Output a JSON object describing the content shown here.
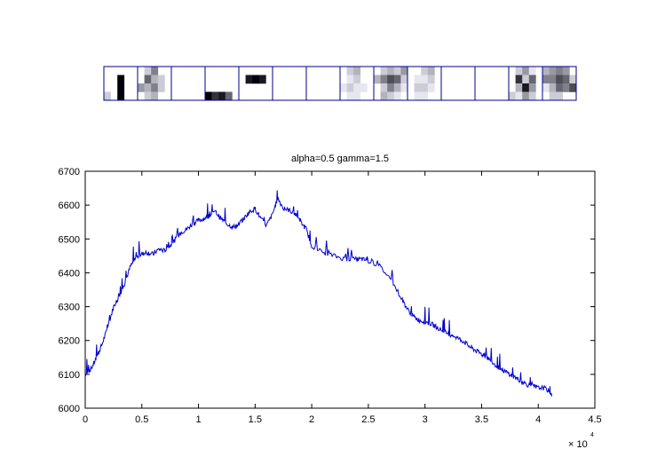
{
  "figure": {
    "strip": {
      "frame_color": "#00008b",
      "segments": 14,
      "rows": 4,
      "cols_per_segment": 5,
      "segment_intensity": [
        [
          [
            0,
            0,
            0,
            0,
            0
          ],
          [
            0,
            0,
            1,
            0,
            0
          ],
          [
            0,
            0,
            1,
            0,
            0
          ],
          [
            0.2,
            0,
            1,
            0,
            0
          ]
        ],
        [
          [
            0,
            0.2,
            0.5,
            0,
            0
          ],
          [
            0,
            0.6,
            0.3,
            0.2,
            0
          ],
          [
            0.4,
            0.3,
            0.5,
            0.2,
            0
          ],
          [
            0,
            0.2,
            0.3,
            0,
            0
          ]
        ],
        [
          [
            0,
            0,
            0,
            0,
            0
          ],
          [
            0,
            0,
            0,
            0,
            0
          ],
          [
            0,
            0,
            0,
            0,
            0
          ],
          [
            0,
            0,
            0,
            0,
            0
          ]
        ],
        [
          [
            0,
            0,
            0,
            0,
            0
          ],
          [
            0,
            0,
            0,
            0,
            0
          ],
          [
            0,
            0,
            0,
            0,
            0
          ],
          [
            1,
            0.8,
            0.9,
            0.6,
            0
          ]
        ],
        [
          [
            0,
            0,
            0,
            0,
            0
          ],
          [
            0,
            0.9,
            1,
            0.9,
            0
          ],
          [
            0,
            0,
            0,
            0,
            0
          ],
          [
            0,
            0,
            0,
            0,
            0
          ]
        ],
        [
          [
            0,
            0,
            0,
            0,
            0
          ],
          [
            0,
            0,
            0,
            0,
            0
          ],
          [
            0,
            0,
            0,
            0,
            0
          ],
          [
            0,
            0,
            0,
            0,
            0
          ]
        ],
        [
          [
            0,
            0,
            0,
            0,
            0
          ],
          [
            0,
            0,
            0,
            0,
            0
          ],
          [
            0,
            0,
            0,
            0,
            0
          ],
          [
            0,
            0,
            0,
            0,
            0
          ]
        ],
        [
          [
            0,
            0.2,
            0.3,
            0,
            0
          ],
          [
            0,
            0.1,
            0.2,
            0,
            0
          ],
          [
            0.1,
            0.2,
            0.1,
            0.1,
            0
          ],
          [
            0,
            0.1,
            0.1,
            0,
            0
          ]
        ],
        [
          [
            0,
            0.2,
            0.3,
            0.2,
            0.4
          ],
          [
            0.3,
            0.5,
            0.7,
            0.6,
            0.2
          ],
          [
            0,
            0.2,
            0.5,
            0.3,
            0.1
          ],
          [
            0,
            0.3,
            0.2,
            0.1,
            0
          ]
        ],
        [
          [
            0,
            0,
            0.2,
            0.3,
            0
          ],
          [
            0,
            0.1,
            0.1,
            0.2,
            0
          ],
          [
            0,
            0.2,
            0.2,
            0.1,
            0
          ],
          [
            0,
            0.1,
            0.1,
            0,
            0
          ]
        ],
        [
          [
            0,
            0,
            0,
            0,
            0
          ],
          [
            0,
            0,
            0,
            0,
            0
          ],
          [
            0,
            0,
            0,
            0,
            0
          ],
          [
            0,
            0,
            0,
            0,
            0
          ]
        ],
        [
          [
            0,
            0,
            0,
            0,
            0
          ],
          [
            0,
            0,
            0,
            0,
            0
          ],
          [
            0,
            0,
            0,
            0,
            0
          ],
          [
            0,
            0,
            0,
            0,
            0
          ]
        ],
        [
          [
            0,
            0.2,
            0.4,
            0.1,
            0
          ],
          [
            0,
            0.8,
            0.2,
            0.6,
            0
          ],
          [
            0,
            0.3,
            0.9,
            0.4,
            0
          ],
          [
            0.2,
            0.1,
            0.4,
            0.2,
            0
          ]
        ],
        [
          [
            0.3,
            0.4,
            0.5,
            0.4,
            0
          ],
          [
            0.5,
            0.5,
            0.7,
            0.6,
            0.2
          ],
          [
            0.1,
            0.3,
            0.6,
            0.5,
            0.7
          ],
          [
            0,
            0.2,
            0.2,
            0,
            0
          ]
        ]
      ]
    }
  },
  "chart_data": {
    "type": "line",
    "title": "alpha=0.5  gamma=1.5",
    "xlabel": "",
    "ylabel": "",
    "xlim": [
      0,
      45000
    ],
    "ylim": [
      6000,
      6700
    ],
    "x_exponent_label": "× 10",
    "x_exponent_power": "4",
    "xticks": [
      0,
      5000,
      10000,
      15000,
      20000,
      25000,
      30000,
      35000,
      40000,
      45000
    ],
    "xtick_labels": [
      "0",
      "0.5",
      "1",
      "1.5",
      "2",
      "2.5",
      "3",
      "3.5",
      "4",
      "4.5"
    ],
    "yticks": [
      6000,
      6100,
      6200,
      6300,
      6400,
      6500,
      6600,
      6700
    ],
    "ytick_labels": [
      "6000",
      "6100",
      "6200",
      "6300",
      "6400",
      "6500",
      "6600",
      "6700"
    ],
    "grid": false,
    "series": [
      {
        "color": "#0000cc",
        "x": [
          0,
          500,
          1000,
          1500,
          2000,
          2500,
          3000,
          3500,
          4000,
          4500,
          5000,
          5500,
          6000,
          6500,
          7000,
          7500,
          8000,
          8500,
          9000,
          9500,
          10000,
          10500,
          11000,
          11500,
          12000,
          12500,
          13000,
          13500,
          14000,
          14500,
          15000,
          15500,
          16000,
          16500,
          17000,
          17500,
          18000,
          18500,
          19000,
          19500,
          20000,
          21000,
          22000,
          23000,
          24000,
          24500,
          25000,
          26000,
          27000,
          28000,
          28500,
          29000,
          29500,
          30000,
          30500,
          31000,
          31500,
          32000,
          32500,
          33000,
          33500,
          34000,
          34500,
          35000,
          35500,
          36000,
          36500,
          37000,
          37500,
          38000,
          38500,
          39000,
          39500,
          40000,
          40500,
          41000,
          41200
        ],
        "y": [
          6100,
          6115,
          6150,
          6190,
          6240,
          6300,
          6330,
          6370,
          6420,
          6445,
          6455,
          6460,
          6455,
          6470,
          6465,
          6480,
          6500,
          6520,
          6530,
          6545,
          6555,
          6560,
          6570,
          6580,
          6560,
          6545,
          6535,
          6540,
          6560,
          6580,
          6590,
          6560,
          6540,
          6570,
          6620,
          6590,
          6585,
          6575,
          6550,
          6530,
          6480,
          6460,
          6450,
          6440,
          6440,
          6440,
          6435,
          6420,
          6380,
          6320,
          6290,
          6270,
          6260,
          6255,
          6250,
          6240,
          6230,
          6220,
          6215,
          6205,
          6195,
          6180,
          6170,
          6160,
          6150,
          6135,
          6120,
          6110,
          6100,
          6090,
          6080,
          6070,
          6065,
          6060,
          6060,
          6050,
          6040
        ]
      }
    ]
  }
}
